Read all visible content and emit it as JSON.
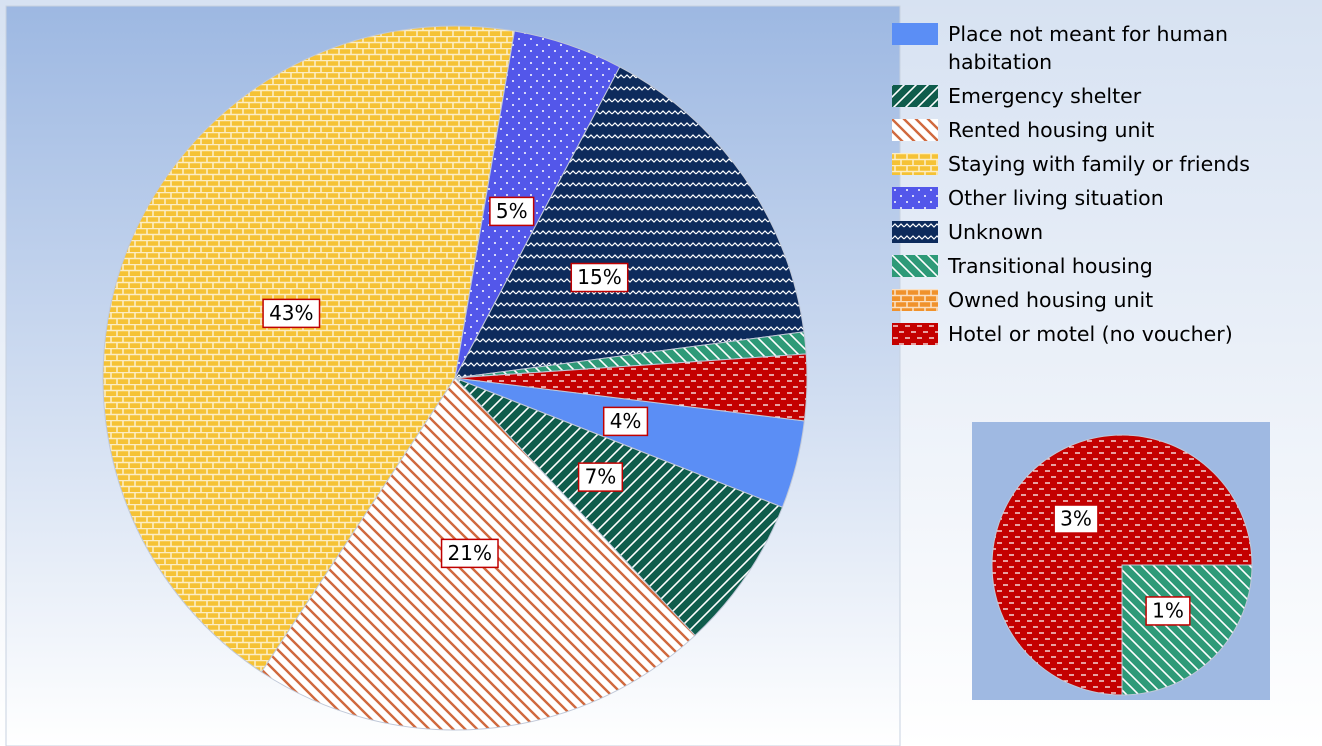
{
  "chart_data": [
    {
      "type": "pie",
      "categories": [
        "Place not meant for human habitation",
        "Emergency shelter",
        "Rented housing unit",
        "Staying with family or friends",
        "Other living situation",
        "Unknown",
        "Transitional housing",
        "Owned housing unit",
        "Hotel or motel (no voucher)"
      ],
      "values": [
        4,
        7,
        21,
        43,
        5,
        15,
        1,
        0,
        3
      ],
      "value_labels": [
        "4%",
        "7%",
        "21%",
        "43%",
        "5%",
        "15%",
        null,
        null,
        null
      ],
      "colors": [
        "#5b8ef5",
        "#0f5c4c",
        "#d0693e",
        "#f5c235",
        "#5357ea",
        "#0d2b5c",
        "#2e9a78",
        "#f0922c",
        "#c40000"
      ],
      "legend": "right"
    },
    {
      "type": "pie",
      "values": [
        3,
        1
      ],
      "value_labels": [
        "3%",
        "1%"
      ],
      "colors": [
        "#c40000",
        "#2e9a78"
      ]
    }
  ]
}
